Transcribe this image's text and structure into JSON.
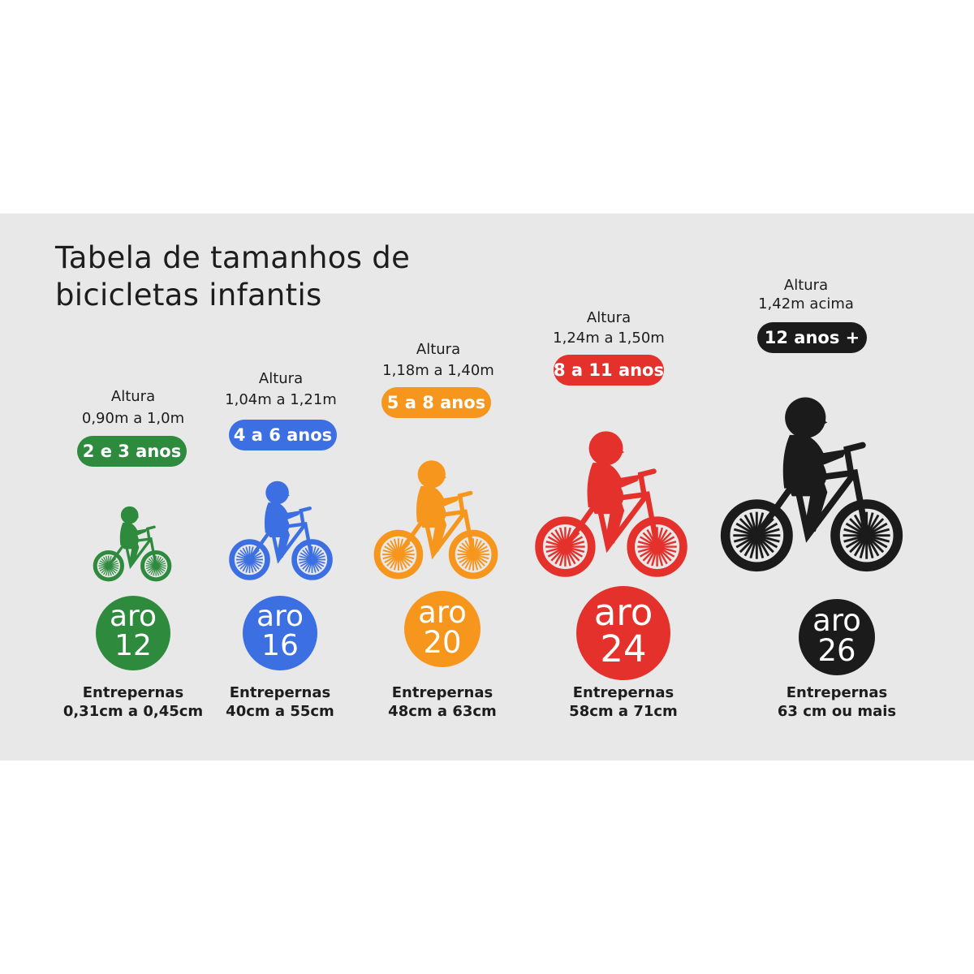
{
  "title_line1": "Tabela de tamanhos de",
  "title_line2": "bicicletas infantis",
  "columns": [
    {
      "altura_label": "Altura",
      "altura": "0,90m a 1,0m",
      "idade": "2 e 3 anos",
      "aro_label": "aro",
      "aro": "12",
      "entrepernas_label": "Entrepernas",
      "entrepernas": "0,31cm a 0,45cm",
      "color": "#2e8b3e",
      "icon": "child-on-bicycle-icon"
    },
    {
      "altura_label": "Altura",
      "altura": "1,04m a 1,21m",
      "idade": "4 a 6 anos",
      "aro_label": "aro",
      "aro": "16",
      "entrepernas_label": "Entrepernas",
      "entrepernas": "40cm a 55cm",
      "color": "#3b6fe2",
      "icon": "child-on-bicycle-icon"
    },
    {
      "altura_label": "Altura",
      "altura": "1,18m a 1,40m",
      "idade": "5 a 8 anos",
      "aro_label": "aro",
      "aro": "20",
      "entrepernas_label": "Entrepernas",
      "entrepernas": "48cm a 63cm",
      "color": "#f7961d",
      "icon": "child-on-bicycle-icon"
    },
    {
      "altura_label": "Altura",
      "altura": "1,24m a 1,50m",
      "idade": "8 a 11 anos",
      "aro_label": "aro",
      "aro": "24",
      "entrepernas_label": "Entrepernas",
      "entrepernas": "58cm a 71cm",
      "color": "#e4312b",
      "icon": "child-on-bicycle-icon"
    },
    {
      "altura_label": "Altura",
      "altura": "1,42m acima",
      "idade": "12 anos +",
      "aro_label": "aro",
      "aro": "26",
      "entrepernas_label": "Entrepernas",
      "entrepernas": "63 cm ou mais",
      "color": "#1b1b1b",
      "icon": "child-on-bicycle-icon"
    }
  ]
}
